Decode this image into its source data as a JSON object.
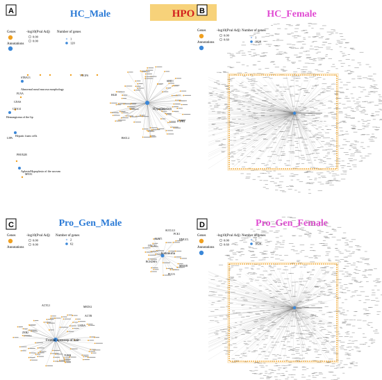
{
  "header": {
    "title": "HPO",
    "banner_color": "#f7d27a",
    "title_color": "#d21d1d"
  },
  "colors": {
    "gene": "#f0a020",
    "annotation": "#3a87d8",
    "male_title": "#2a7ad6",
    "female_title": "#e04ad2",
    "edge": "#7f7f7f",
    "highlight_box": "#f0a020"
  },
  "panels": [
    {
      "id": "A",
      "title": "HC_Male",
      "legend": {
        "genes_label": "Genes",
        "annotations_label": "Annotations",
        "pval_label": "-log10(Pval Adj)",
        "pval_values": [
          "0.00",
          "0.00"
        ],
        "count_label": "Number of genes",
        "count_values": [
          "1",
          "120"
        ]
      },
      "term_labels": [
        "Abnormal nasal mucosa morphology",
        "Hemangioma of the lip",
        "Hepatic foam cells",
        "Aplasia/Hypoplasia of the sacrum",
        "Hypertension"
      ],
      "gene_labels": [
        "STRA13",
        "FLNA",
        "GNAS",
        "GNA14",
        "LIPA",
        "PHOX2B",
        "MNX1",
        "VEGFA",
        "HGD",
        "SIRT1",
        "FGFR2",
        "BSCL2"
      ]
    },
    {
      "id": "B",
      "title": "HC_Female",
      "legend": {
        "genes_label": "Genes",
        "annotations_label": "Annotations",
        "pval_label": "-log10(Pval Adj)",
        "pval_values": [
          "0.00",
          "0.60"
        ],
        "count_label": "Number of genes",
        "count_values": [
          "1",
          "1828"
        ]
      }
    },
    {
      "id": "C",
      "title": "Pro_Gen_Male",
      "legend": {
        "genes_label": "Genes",
        "annotations_label": "Annotations",
        "pval_label": "-log10(Pval Adj)",
        "pval_values": [
          "0.00",
          "0.00"
        ],
        "count_label": "Number of genes",
        "count_values": [
          "2",
          "62"
        ]
      },
      "term_labels": [
        "Ketonuria",
        "Frontal upsweep of hair"
      ],
      "gene_labels": [
        "SUCLG1",
        "PCK1",
        "ACAT1",
        "OXCT1",
        "MMAB",
        "HMGCL",
        "BCKDHA",
        "PCCA",
        "ACTG1",
        "MED12",
        "ACTB",
        "LMNA",
        "ZEB2",
        "TUBB"
      ]
    },
    {
      "id": "D",
      "title": "Pro_Gen_Female",
      "legend": {
        "genes_label": "Genes",
        "annotations_label": "Annotations",
        "pval_label": "-log10(Pval Adj)",
        "pval_values": [
          "0.00",
          "0.60"
        ],
        "count_label": "Number of genes",
        "count_values": [
          "1",
          "1828"
        ]
      }
    }
  ]
}
